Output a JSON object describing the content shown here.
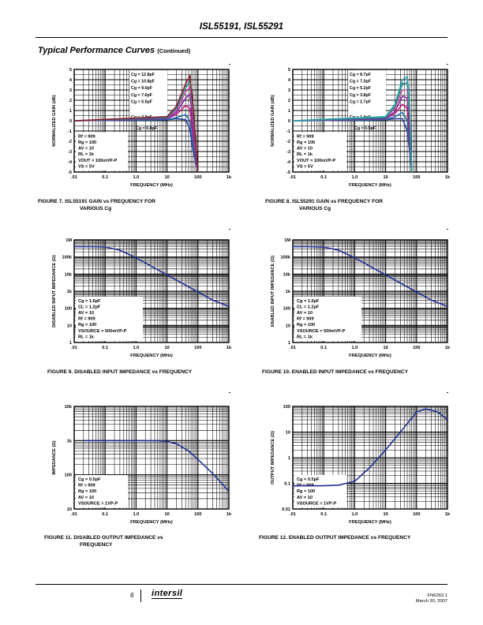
{
  "header": {
    "title": "ISL55191, ISL55291"
  },
  "section": {
    "title": "Typical Performance Curves",
    "continued": "(Continued)"
  },
  "footer": {
    "page": "6",
    "logo": "intersil",
    "doc": "FN6263.1",
    "date": "March 30, 2007"
  },
  "figures": [
    {
      "caption1": "FIGURE 7.  ISL55191 GAIN vs FREQUENCY FOR",
      "caption2": "VARIOUS Cg",
      "chart_data": {
        "type": "line",
        "xscale": "log",
        "yscale": "linear",
        "xlim": [
          0.01,
          1000
        ],
        "ylim": [
          -5,
          5
        ],
        "xlabel": "FREQUENCY (MHz)",
        "ylabel": "NORMALIZED GAIN (dB)",
        "xticks": [
          ".01",
          "0.1",
          "1.0",
          "10",
          "100",
          "1k"
        ],
        "yticks": [
          "5",
          "4",
          "3",
          "2",
          "1",
          "0",
          "-1",
          "-2",
          "-3",
          "-4",
          "-5"
        ],
        "params": [
          "Rf = 909",
          "Rg = 100",
          "AV = 10",
          "RL = 1k",
          "VOUT = 100mVP-P",
          "VS = 5V"
        ],
        "annotations": [
          "Cg = 12.8pF",
          "Cg = 10.8pF",
          "Cg = 9.0pF",
          "Cg = 7.6pF",
          "Cg = 5.5pF",
          "Cg = 3.0pF",
          "Cg = 0.8pF"
        ],
        "series": [
          {
            "name": "Cg = 0.8pF",
            "color": "#2b3a9c",
            "x": [
              0.01,
              10,
              20,
              40,
              55,
              70,
              100
            ],
            "y": [
              0,
              0.1,
              0.2,
              0.1,
              -0.8,
              -3,
              -5
            ]
          },
          {
            "name": "Cg = 3.0pF",
            "color": "#1c6fa3",
            "x": [
              0.01,
              10,
              20,
              40,
              55,
              70,
              100
            ],
            "y": [
              0,
              0.1,
              0.3,
              0.6,
              0,
              -2.5,
              -5
            ]
          },
          {
            "name": "Cg = 5.5pF",
            "color": "#c0187a",
            "x": [
              0.01,
              10,
              20,
              40,
              55,
              70,
              100
            ],
            "y": [
              0,
              0.2,
              0.6,
              1.5,
              1.2,
              -1.5,
              -5
            ]
          },
          {
            "name": "Cg = 7.6pF",
            "color": "#7a2a9e",
            "x": [
              0.01,
              10,
              20,
              40,
              55,
              70,
              100
            ],
            "y": [
              0,
              0.2,
              0.8,
              2.2,
              2.6,
              -0.5,
              -5
            ]
          },
          {
            "name": "Cg = 9.0pF",
            "color": "#d04d9a",
            "x": [
              0.01,
              10,
              20,
              40,
              55,
              70,
              100
            ],
            "y": [
              0,
              0.3,
              1,
              2.8,
              3.3,
              0.5,
              -5
            ]
          },
          {
            "name": "Cg = 10.8pF",
            "color": "#1f8a8a",
            "x": [
              0.01,
              10,
              20,
              40,
              55,
              70,
              100
            ],
            "y": [
              0,
              0.3,
              1.2,
              3.2,
              3.9,
              1,
              -5
            ]
          },
          {
            "name": "Cg = 12.8pF",
            "color": "#8b1d2c",
            "x": [
              0.01,
              10,
              20,
              40,
              55,
              70,
              100
            ],
            "y": [
              0,
              0.4,
              1.4,
              3.6,
              4.4,
              1.5,
              -5
            ]
          }
        ]
      }
    },
    {
      "caption1": "FIGURE 8.  ISL55291 GAIN vs FREQUENCY FOR",
      "caption2": "VARIOUS Cg",
      "chart_data": {
        "type": "line",
        "xscale": "log",
        "yscale": "linear",
        "xlim": [
          0.01,
          1000
        ],
        "ylim": [
          -5,
          5
        ],
        "xlabel": "FREQUENCY (MHz)",
        "ylabel": "NORMALIZED GAIN (dB)",
        "xticks": [
          ".01",
          "0.1",
          "1.0",
          "10",
          "100",
          "1k"
        ],
        "yticks": [
          "5",
          "4",
          "3",
          "2",
          "1",
          "0",
          "-1",
          "-2",
          "-3",
          "-4",
          "-5"
        ],
        "params": [
          "Rf = 909",
          "Rg = 100",
          "AV = 10",
          "RL = 1k",
          "VOUT = 100mVP-P",
          "VS = 5V"
        ],
        "annotations": [
          "Cg = 8.7pF",
          "Cg = 7.3pF",
          "Cg = 5.2pF",
          "Cg = 3.8pF",
          "Cg = 2.7pF",
          "Cg = 1.6pF",
          "Cg = 0.5pF"
        ],
        "series": [
          {
            "name": "Cg = 0.5pF",
            "color": "#2b3a9c",
            "x": [
              0.01,
              10,
              20,
              35,
              50,
              60,
              70
            ],
            "y": [
              0,
              0.1,
              0.2,
              0.2,
              -1,
              -3,
              -5
            ]
          },
          {
            "name": "Cg = 1.6pF",
            "color": "#1c6fa3",
            "x": [
              0.01,
              10,
              20,
              35,
              50,
              60,
              70
            ],
            "y": [
              0,
              0.1,
              0.4,
              0.8,
              0,
              -2.5,
              -5
            ]
          },
          {
            "name": "Cg = 2.7pF",
            "color": "#c0187a",
            "x": [
              0.01,
              10,
              20,
              35,
              50,
              60,
              70
            ],
            "y": [
              0,
              0.2,
              0.7,
              1.6,
              1.2,
              -1.5,
              -5
            ]
          },
          {
            "name": "Cg = 3.8pF",
            "color": "#7a2a9e",
            "x": [
              0.01,
              10,
              20,
              35,
              50,
              60,
              70
            ],
            "y": [
              0,
              0.2,
              0.9,
              2.4,
              2.2,
              -0.5,
              -5
            ]
          },
          {
            "name": "Cg = 5.2pF",
            "color": "#d04d9a",
            "x": [
              0.01,
              10,
              20,
              35,
              50,
              60,
              70
            ],
            "y": [
              0,
              0.3,
              1.2,
              3,
              3,
              0.3,
              -5
            ]
          },
          {
            "name": "Cg = 7.3pF",
            "color": "#1f8a8a",
            "x": [
              0.01,
              10,
              20,
              35,
              50,
              60,
              70
            ],
            "y": [
              0,
              0.3,
              1.4,
              3.6,
              3.7,
              1,
              -5
            ]
          },
          {
            "name": "Cg = 8.7pF",
            "color": "#2aa0a0",
            "x": [
              0.01,
              10,
              20,
              35,
              50,
              60,
              70
            ],
            "y": [
              0,
              0.4,
              1.6,
              4,
              4.3,
              1.5,
              -5
            ]
          }
        ]
      }
    },
    {
      "caption1": "FIGURE 9.  DISABLED INPUT IMPEDANCE vs FREQUENCY",
      "caption2": "",
      "chart_data": {
        "type": "line",
        "xscale": "log",
        "yscale": "log",
        "xlim": [
          0.01,
          1000
        ],
        "ylim": [
          1,
          1000000
        ],
        "xlabel": "FREQUENCY (MHz)",
        "ylabel": "DISABLED INPUT IMPEDANCE (Ω)",
        "xticks": [
          ".01",
          "0.1",
          "1.0",
          "10",
          "100",
          "1k"
        ],
        "yticks": [
          "1M",
          "100k",
          "10k",
          "1k",
          "100",
          "10",
          "1"
        ],
        "params": [
          "Cg = 1.6pF",
          "CL = 1.2pF",
          "AV = 10",
          "Rf = 909",
          "Rg = 100",
          "VSOURCE = 500mVP-P",
          "RL = 1k"
        ],
        "annotations": [],
        "series": [
          {
            "name": "impedance",
            "color": "#1f2f8f",
            "x": [
              0.01,
              0.03,
              0.1,
              0.3,
              1,
              10,
              100,
              300,
              1000
            ],
            "y": [
              400000,
              400000,
              390000,
              250000,
              90000,
              9000,
              900,
              300,
              130
            ]
          }
        ]
      }
    },
    {
      "caption1": "FIGURE 10.  ENABLED INPUT IMPEDANCE vs FREQUENCY",
      "caption2": "",
      "chart_data": {
        "type": "line",
        "xscale": "log",
        "yscale": "log",
        "xlim": [
          0.01,
          1000
        ],
        "ylim": [
          1,
          1000000
        ],
        "xlabel": "FREQUENCY (MHz)",
        "ylabel": "ENABLED INPUT IMPEDANCE (Ω)",
        "xticks": [
          ".01",
          "0.1",
          "1.0",
          "10",
          "100",
          "1k"
        ],
        "yticks": [
          "1M",
          "100k",
          "10k",
          "1k",
          "100",
          "10",
          "1"
        ],
        "params": [
          "Cg = 1.6pF",
          "CL = 1.2pF",
          "AV = 10",
          "Rf = 909",
          "Rg = 100",
          "VSOURCE = 500mVP-P",
          "RL = 1k"
        ],
        "annotations": [],
        "series": [
          {
            "name": "impedance",
            "color": "#1f2f8f",
            "x": [
              0.01,
              0.03,
              0.1,
              0.3,
              1,
              10,
              100,
              300,
              1000
            ],
            "y": [
              400000,
              400000,
              380000,
              250000,
              90000,
              9000,
              900,
              300,
              130
            ]
          }
        ]
      }
    },
    {
      "caption1": "FIGURE 11.  DISABLED OUTPUT IMPEDANCE vs",
      "caption2": "FREQUENCY",
      "chart_data": {
        "type": "line",
        "xscale": "log",
        "yscale": "log",
        "xlim": [
          0.01,
          1000
        ],
        "ylim": [
          10,
          10000
        ],
        "xlabel": "FREQUENCY (MHz)",
        "ylabel": "IMPEDANCE (Ω)",
        "xticks": [
          ".01",
          "0.1",
          "1.0",
          "10",
          "100",
          "1k"
        ],
        "yticks": [
          "10k",
          "1k",
          "100",
          "10"
        ],
        "params": [
          "Cg = 0.5pF",
          "Rf = 909",
          "Rg = 100",
          "AV = 10",
          "VSOURCE = 1VP-P"
        ],
        "annotations": [],
        "series": [
          {
            "name": "impedance",
            "color": "#1f2f8f",
            "x": [
              0.02,
              0.1,
              1,
              5,
              10,
              20,
              50,
              100,
              300,
              1000
            ],
            "y": [
              1000,
              1000,
              1000,
              990,
              950,
              820,
              500,
              280,
              110,
              33
            ]
          }
        ]
      }
    },
    {
      "caption1": "FIGURE 12.  ENABLED OUTPUT IMPEDANCE vs FREQUENCY",
      "caption2": "",
      "chart_data": {
        "type": "line",
        "xscale": "log",
        "yscale": "log",
        "xlim": [
          0.01,
          1000
        ],
        "ylim": [
          0.01,
          100
        ],
        "xlabel": "FREQUENCY (MHz)",
        "ylabel": "OUTPUT IMPEDANCE (Ω)",
        "xticks": [
          ".01",
          "0.1",
          "1.0",
          "10",
          "100",
          "1k"
        ],
        "yticks": [
          "100",
          "10",
          "1",
          "0.1",
          "0.01"
        ],
        "params": [
          "Cg = 0.5pF",
          "Rf = 909",
          "Rg = 100",
          "AV = 10",
          "VSOURCE = 1VP-P"
        ],
        "annotations": [],
        "series": [
          {
            "name": "impedance",
            "color": "#1f2f8f",
            "x": [
              0.01,
              0.1,
              0.3,
              1,
              3,
              10,
              30,
              100,
              200,
              500,
              1000
            ],
            "y": [
              0.08,
              0.08,
              0.085,
              0.12,
              0.4,
              2,
              10,
              60,
              80,
              60,
              30
            ]
          }
        ]
      }
    }
  ]
}
